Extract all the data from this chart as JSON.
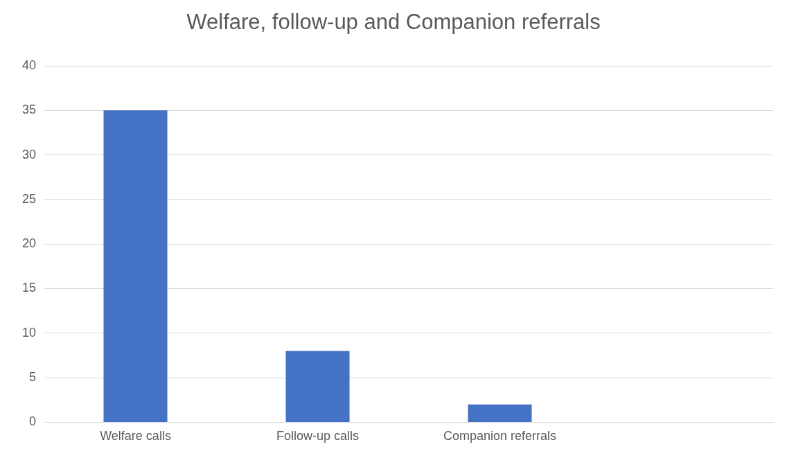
{
  "chart_data": {
    "type": "bar",
    "title": "Welfare, follow-up and Companion referrals",
    "categories": [
      "Welfare calls",
      "Follow-up calls",
      "Companion referrals",
      null
    ],
    "values": [
      35,
      8,
      2,
      null
    ],
    "color": "#4472c4",
    "ylim": [
      0,
      40
    ],
    "yticks": [
      0,
      5,
      10,
      15,
      20,
      25,
      30,
      35,
      40
    ],
    "grid": "y",
    "legend": false
  }
}
